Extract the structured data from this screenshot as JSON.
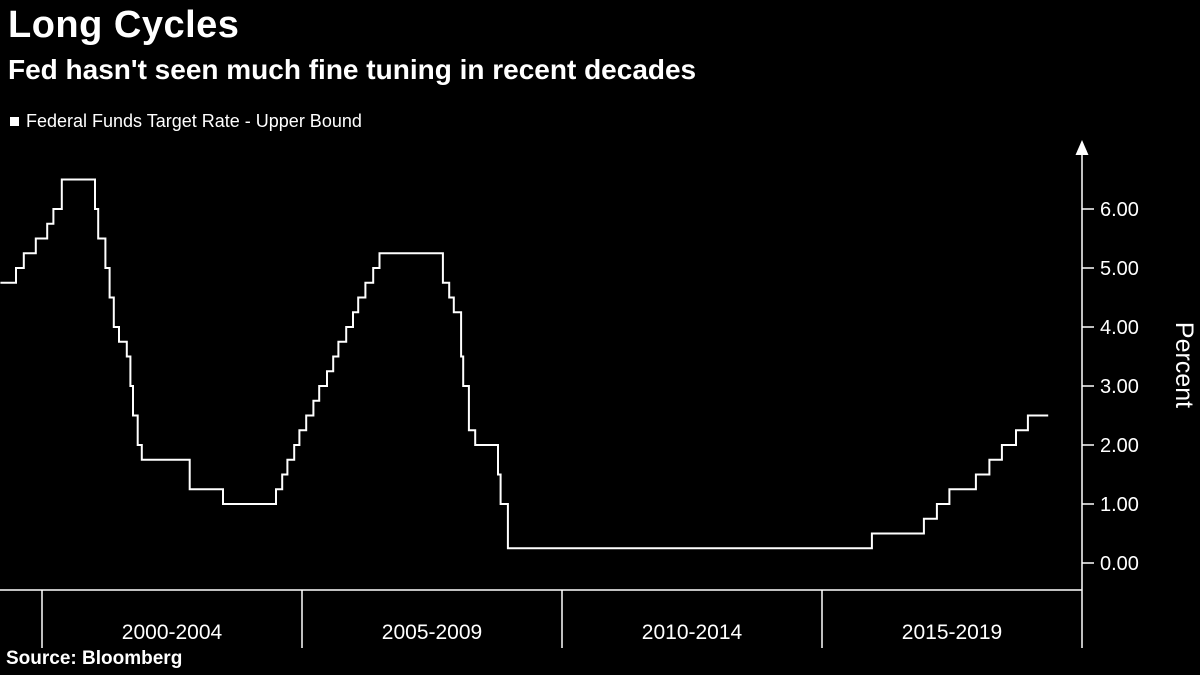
{
  "header": {
    "title": "Long Cycles",
    "subtitle": "Fed hasn't seen much fine tuning in recent decades"
  },
  "legend": {
    "marker": "■",
    "label": "Federal Funds Target Rate - Upper Bound"
  },
  "footer": {
    "source": "Source: Bloomberg"
  },
  "colors": {
    "background": "#000000",
    "foreground": "#ffffff"
  },
  "chart_data": {
    "type": "line",
    "style": "step-after",
    "title": "Long Cycles",
    "subtitle": "Fed hasn't seen much fine tuning in recent decades",
    "series_name": "Federal Funds Target Rate - Upper Bound",
    "source": "Source: Bloomberg",
    "grid": false,
    "legend_position": "top-left",
    "x_start": 1999.2,
    "x_end": 2019.35,
    "x_axis": {
      "tick_years": [
        2000,
        2005,
        2010,
        2015,
        2020
      ],
      "labels": [
        "2000-2004",
        "2005-2009",
        "2010-2014",
        "2015-2019"
      ]
    },
    "y_axis": {
      "label": "Percent",
      "min": 0,
      "max": 7,
      "ticks": [
        0,
        1,
        2,
        3,
        4,
        5,
        6
      ],
      "tick_labels": [
        "0.00",
        "1.00",
        "2.00",
        "3.00",
        "4.00",
        "5.00",
        "6.00"
      ],
      "side": "right"
    },
    "points": [
      [
        1999.2,
        4.75
      ],
      [
        1999.5,
        5.0
      ],
      [
        1999.65,
        5.25
      ],
      [
        1999.88,
        5.5
      ],
      [
        2000.1,
        5.75
      ],
      [
        2000.22,
        6.0
      ],
      [
        2000.38,
        6.5
      ],
      [
        2001.02,
        6.0
      ],
      [
        2001.08,
        5.5
      ],
      [
        2001.22,
        5.0
      ],
      [
        2001.3,
        4.5
      ],
      [
        2001.38,
        4.0
      ],
      [
        2001.48,
        3.75
      ],
      [
        2001.63,
        3.5
      ],
      [
        2001.7,
        3.0
      ],
      [
        2001.75,
        2.5
      ],
      [
        2001.84,
        2.0
      ],
      [
        2001.92,
        1.75
      ],
      [
        2002.84,
        1.25
      ],
      [
        2003.48,
        1.0
      ],
      [
        2004.5,
        1.25
      ],
      [
        2004.62,
        1.5
      ],
      [
        2004.72,
        1.75
      ],
      [
        2004.85,
        2.0
      ],
      [
        2004.95,
        2.25
      ],
      [
        2005.08,
        2.5
      ],
      [
        2005.22,
        2.75
      ],
      [
        2005.33,
        3.0
      ],
      [
        2005.48,
        3.25
      ],
      [
        2005.6,
        3.5
      ],
      [
        2005.7,
        3.75
      ],
      [
        2005.85,
        4.0
      ],
      [
        2005.98,
        4.25
      ],
      [
        2006.08,
        4.5
      ],
      [
        2006.22,
        4.75
      ],
      [
        2006.37,
        5.0
      ],
      [
        2006.49,
        5.25
      ],
      [
        2007.71,
        4.75
      ],
      [
        2007.83,
        4.5
      ],
      [
        2007.92,
        4.25
      ],
      [
        2008.06,
        3.5
      ],
      [
        2008.1,
        3.0
      ],
      [
        2008.21,
        2.25
      ],
      [
        2008.33,
        2.0
      ],
      [
        2008.77,
        1.5
      ],
      [
        2008.82,
        1.0
      ],
      [
        2008.96,
        0.25
      ],
      [
        2015.96,
        0.5
      ],
      [
        2016.96,
        0.75
      ],
      [
        2017.21,
        1.0
      ],
      [
        2017.45,
        1.25
      ],
      [
        2017.96,
        1.5
      ],
      [
        2018.22,
        1.75
      ],
      [
        2018.46,
        2.0
      ],
      [
        2018.73,
        2.25
      ],
      [
        2018.96,
        2.5
      ]
    ]
  }
}
